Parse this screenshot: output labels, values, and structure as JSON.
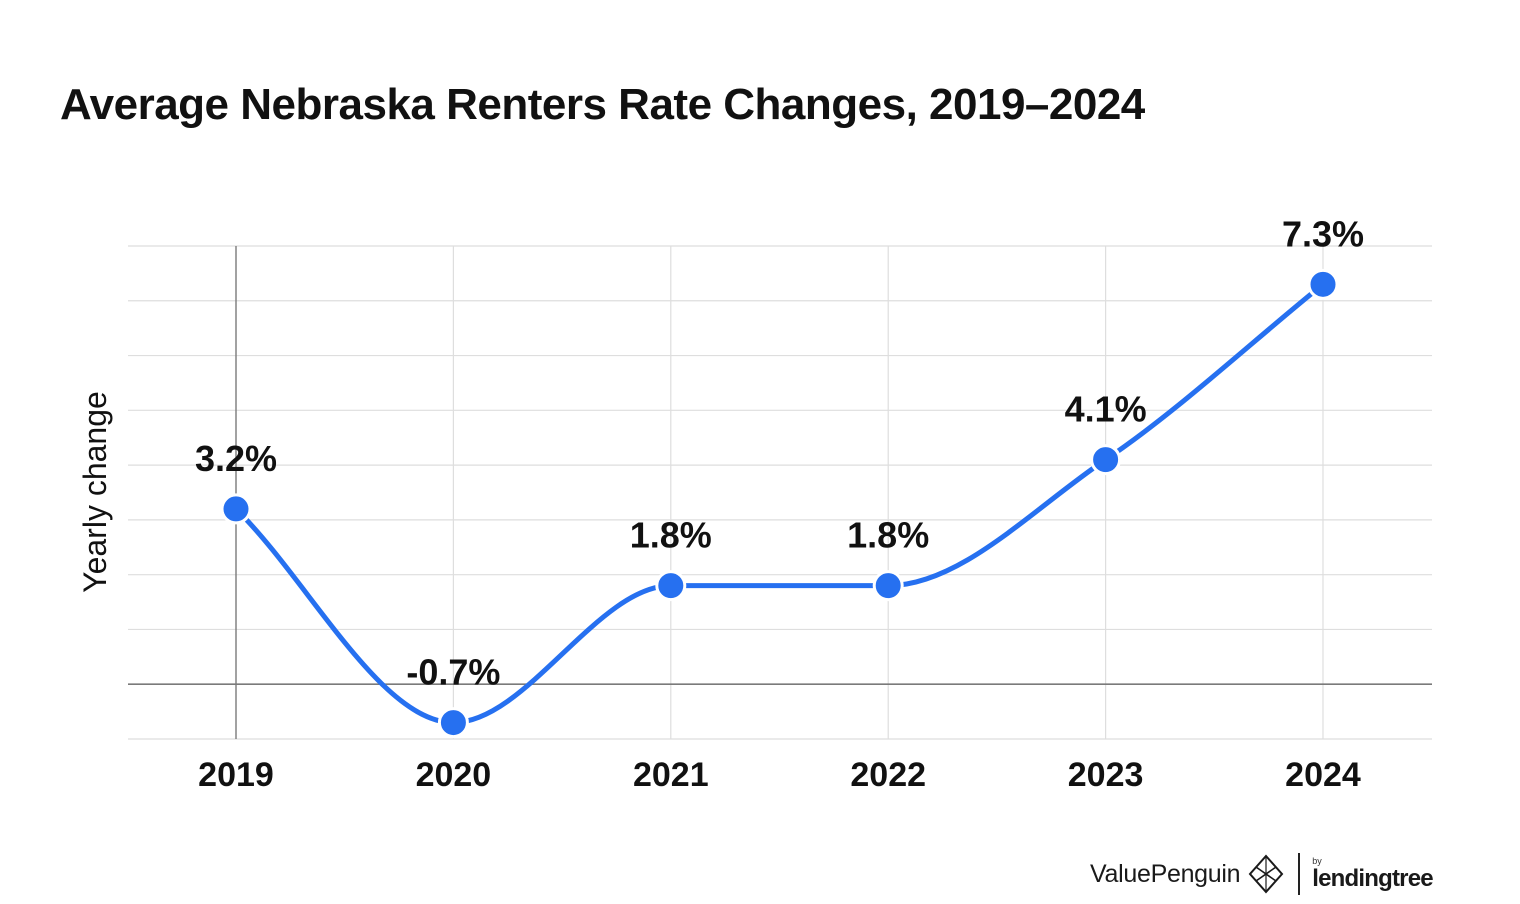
{
  "chart_data": {
    "type": "line",
    "title": "Average Nebraska Renters Rate Changes, 2019–2024",
    "ylabel": "Yearly change",
    "xlabel": "",
    "categories": [
      "2019",
      "2020",
      "2021",
      "2022",
      "2023",
      "2024"
    ],
    "series": [
      {
        "values": [
          3.2,
          -0.7,
          1.8,
          1.8,
          4.1,
          7.3
        ],
        "data_labels": [
          "3.2%",
          "-0.7%",
          "1.8%",
          "1.8%",
          "4.1%",
          "7.3%"
        ],
        "color": "#2670f0"
      }
    ],
    "ylim": [
      -1,
      8
    ],
    "grid": true,
    "smooth": true
  },
  "branding": {
    "name": "ValuePenguin",
    "by": "by",
    "partner": "lendingtree",
    "icon": "valuepenguin-logo-icon"
  }
}
